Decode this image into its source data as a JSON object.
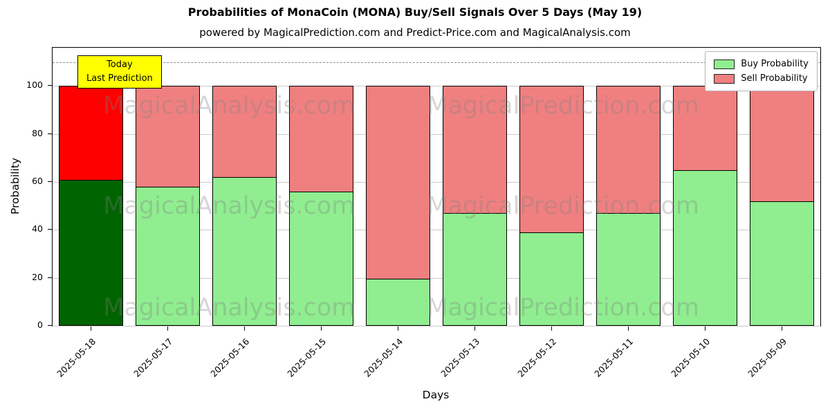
{
  "title": "Probabilities of MonaCoin (MONA) Buy/Sell Signals Over 5 Days (May 19)",
  "subtitle": "powered by MagicalPrediction.com and Predict-Price.com and MagicalAnalysis.com",
  "xlabel": "Days",
  "ylabel": "Probability",
  "annotation": {
    "line1": "Today",
    "line2": "Last Prediction",
    "bg": "#ffff00"
  },
  "legend": [
    {
      "label": "Buy Probability",
      "color": "#90ee90"
    },
    {
      "label": "Sell Probability",
      "color": "#f08080"
    }
  ],
  "watermarks": [
    "MagicalAnalysis.com",
    "MagicalPrediction.com"
  ],
  "chart_data": {
    "type": "bar",
    "stacked": true,
    "title": "Probabilities of MonaCoin (MONA) Buy/Sell Signals Over 5 Days (May 19)",
    "xlabel": "Days",
    "ylabel": "Probability",
    "categories": [
      "2025-05-18",
      "2025-05-17",
      "2025-05-16",
      "2025-05-15",
      "2025-05-14",
      "2025-05-13",
      "2025-05-12",
      "2025-05-11",
      "2025-05-10",
      "2025-05-09"
    ],
    "series": [
      {
        "name": "Buy Probability",
        "values": [
          61,
          58,
          62,
          56,
          19.5,
          47,
          39,
          47,
          65,
          52
        ]
      },
      {
        "name": "Sell Probability",
        "values": [
          39,
          42,
          38,
          44,
          80.5,
          53,
          61,
          53,
          35,
          48
        ]
      }
    ],
    "yticks": [
      0,
      20,
      40,
      60,
      80,
      100
    ],
    "ylim": [
      0,
      116
    ],
    "dashed_line_y": 110,
    "grid": true,
    "legend_position": "upper right",
    "highlight_index": 0,
    "colors": {
      "buy": "#90ee90",
      "sell": "#f08080",
      "buy_highlight": "#006400",
      "sell_highlight": "#ff0000",
      "bar_edge": "#000000"
    }
  }
}
